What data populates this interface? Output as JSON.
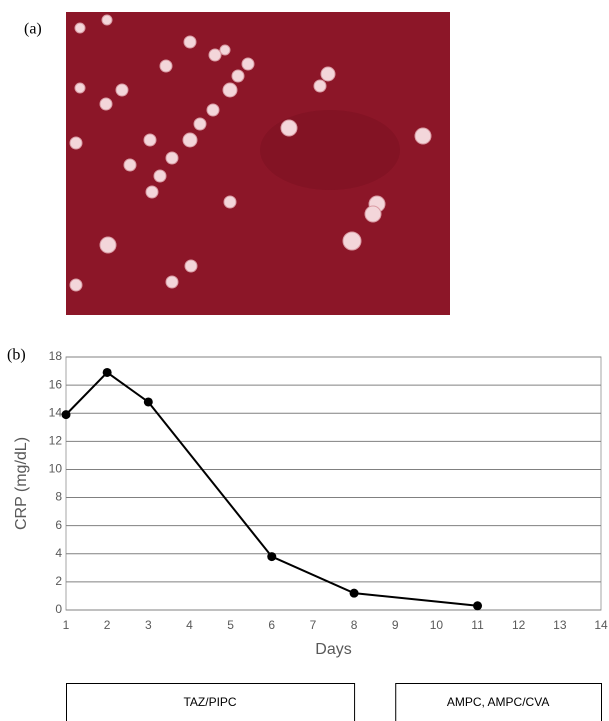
{
  "panels": [
    {
      "label": "(a)"
    },
    {
      "label": "(b)"
    }
  ],
  "chart_data": {
    "type": "line",
    "x": [
      1,
      2,
      3,
      6,
      8,
      11
    ],
    "series": [
      {
        "color": "#000000",
        "values": [
          13.9,
          16.9,
          14.8,
          3.8,
          1.2,
          0.3
        ]
      }
    ],
    "xlim": [
      1,
      14
    ],
    "xticks": [
      1,
      2,
      3,
      4,
      5,
      6,
      7,
      8,
      9,
      10,
      11,
      12,
      13,
      14
    ],
    "ylim": [
      0,
      18
    ],
    "yticks": [
      0,
      2,
      4,
      6,
      8,
      10,
      12,
      14,
      16,
      18
    ],
    "grid": true,
    "xlabel": "Days",
    "ylabel": "CRP (mg/dL)",
    "annotations": [
      {
        "text": "TAZ/PIPC",
        "x": [
          1,
          8
        ]
      },
      {
        "text": "AMPC, AMPC/CVA",
        "x": [
          9,
          14
        ]
      }
    ]
  }
}
